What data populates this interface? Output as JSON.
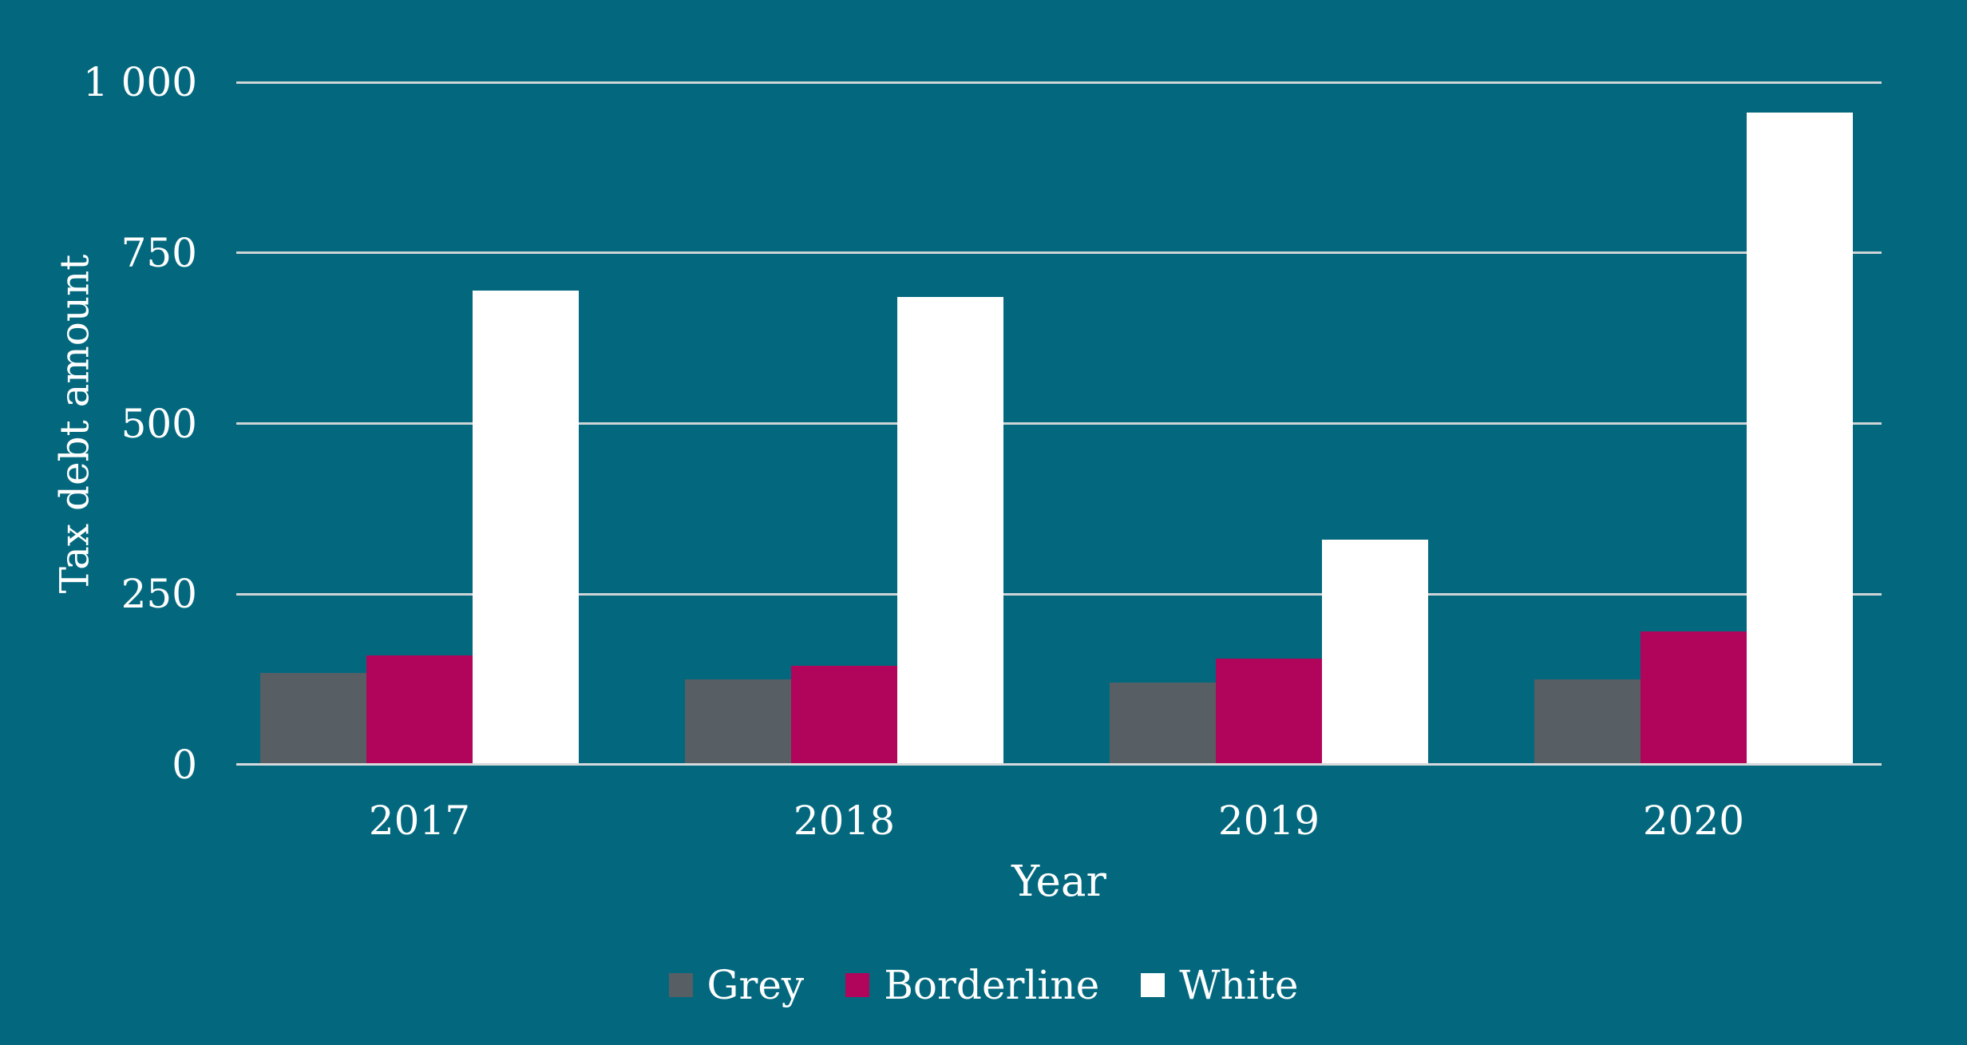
{
  "chart_data": {
    "type": "bar",
    "title": "",
    "xlabel": "Year",
    "ylabel": "Tax debt amount",
    "categories": [
      "2017",
      "2018",
      "2019",
      "2020"
    ],
    "series": [
      {
        "name": "Grey",
        "color": "#575E64",
        "values": [
          135,
          125,
          120,
          125
        ]
      },
      {
        "name": "Borderline",
        "color": "#B1055C",
        "values": [
          160,
          145,
          155,
          195
        ]
      },
      {
        "name": "White",
        "color": "#FFFFFF",
        "values": [
          695,
          685,
          330,
          955
        ]
      }
    ],
    "ylim": [
      0,
      1000
    ],
    "y_ticks": [
      0,
      250,
      500,
      750,
      1000
    ],
    "y_tick_labels": [
      "0",
      "250",
      "500",
      "750",
      "1 000"
    ],
    "grid": true,
    "legend_position": "bottom",
    "colors": {
      "background": "#03687E",
      "gridline": "#CFD4D6",
      "baseline": "#D6DADC",
      "text": "#FFFFFF"
    }
  }
}
